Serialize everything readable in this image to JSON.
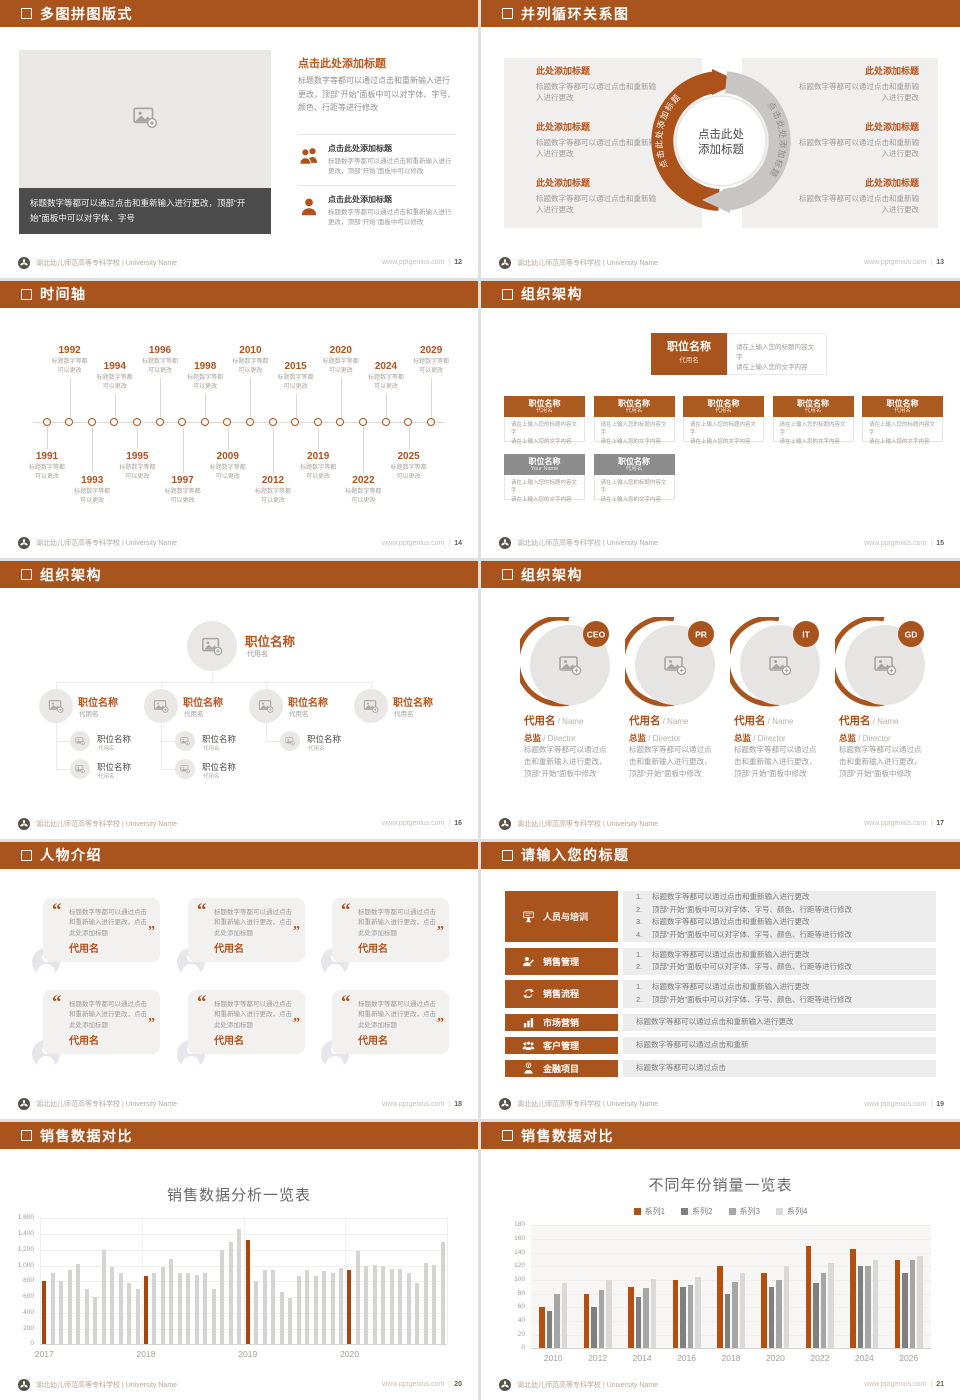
{
  "footer": {
    "school": "湖北幼儿师范高等专科学校 | University Name",
    "site": "www.pptgenius.com"
  },
  "colors": {
    "accent": "#a9531d",
    "accent_text": "#b4511a",
    "chart_orange": "#a8440c",
    "dark_caption": "#4c4c4c",
    "panel_gray": "#f0efee"
  },
  "slides": {
    "s12": {
      "title": "多图拼图版式",
      "page": "12",
      "caption": "标题数字等都可以通过点击和重新输入进行更改，顶部“开始”面板中可以对字体、字号",
      "heading": "点击此处添加标题",
      "paragraph": "标题数字等都可以通过点击和重新输入进行更改，顶部“开始”面板中可以对字体、字号、颜色、行距等进行修改",
      "items": [
        {
          "icon": "people",
          "title": "点击此处添加标题",
          "text": "标题数字等都可以通过点击和重新输入进行更改，顶部“开始”面板中可以修改"
        },
        {
          "icon": "person",
          "title": "点击此处添加标题",
          "text": "标题数字等都可以通过点击和重新输入进行更改，顶部“开始”面板中可以修改"
        }
      ]
    },
    "s13": {
      "title": "并列循环关系图",
      "page": "13",
      "center_line1": "点击此处",
      "center_line2": "添加标题",
      "arc_label": "点击此处添加标题",
      "left_items": [
        {
          "title": "此处添加标题",
          "text": "标题数字等都可以通过点击和重新输入进行更改"
        },
        {
          "title": "此处添加标题",
          "text": "标题数字等都可以通过点击和重新输入进行更改"
        },
        {
          "title": "此处添加标题",
          "text": "标题数字等都可以通过点击和重新输入进行更改"
        }
      ],
      "right_items": [
        {
          "title": "此处添加标题",
          "text": "标题数字等都可以通过点击和重新输入进行更改"
        },
        {
          "title": "此处添加标题",
          "text": "标题数字等都可以通过点击和重新输入进行更改"
        },
        {
          "title": "此处添加标题",
          "text": "标题数字等都可以通过点击和重新输入进行更改"
        }
      ]
    },
    "s14": {
      "title": "时间轴",
      "page": "14",
      "years": [
        "1991",
        "1992",
        "1993",
        "1994",
        "1995",
        "1996",
        "1997",
        "1998",
        "2009",
        "2010",
        "2012",
        "2015",
        "2019",
        "2020",
        "2022",
        "2024",
        "2025",
        "2029"
      ],
      "caption_line1": "标题数字等都",
      "caption_line2": "可以更改"
    },
    "s15": {
      "title": "组织架构",
      "page": "15",
      "root_title": "职位名称",
      "root_sub": "代用名",
      "note_line1": "请在上输入您的标题内容文字",
      "note_line2": "请在上输入您的文字内容",
      "card_body_line1": "请在上输入您的标题内容文字",
      "card_body_line2": "请在上输入您的文字内容",
      "cards_row1": [
        {
          "name": "职位名称",
          "sub": "代用名"
        },
        {
          "name": "职位名称",
          "sub": "代用名"
        },
        {
          "name": "职位名称",
          "sub": "代用名"
        },
        {
          "name": "职位名称",
          "sub": "代用名"
        },
        {
          "name": "职位名称",
          "sub": "代用名"
        }
      ],
      "cards_row2": [
        {
          "name": "职位名称",
          "sub": "Your Name"
        },
        {
          "name": "职位名称",
          "sub": "代用名"
        }
      ]
    },
    "s16": {
      "title": "组织架构",
      "page": "16",
      "root_title": "职位名称",
      "root_sub": "代用名",
      "branches": [
        {
          "name": "职位名称",
          "sub": "代用名",
          "children": [
            {
              "name": "职位名称",
              "sub": "代用名"
            },
            {
              "name": "职位名称",
              "sub": "代用名"
            }
          ]
        },
        {
          "name": "职位名称",
          "sub": "代用名",
          "children": [
            {
              "name": "职位名称",
              "sub": "代用名"
            },
            {
              "name": "职位名称",
              "sub": "代用名"
            }
          ]
        },
        {
          "name": "职位名称",
          "sub": "代用名",
          "children": [
            {
              "name": "职位名称",
              "sub": "代用名"
            }
          ]
        },
        {
          "name": "职位名称",
          "sub": "代用名",
          "children": []
        }
      ]
    },
    "s17": {
      "title": "组织架构",
      "page": "17",
      "members": [
        {
          "badge": "CEO",
          "name": "代用名",
          "name_en": "/ Name",
          "role": "总监",
          "role_en": "/ Director",
          "text": "标题数字等都可以通过点击和重新输入进行更改，顶部“开始”面板中修改"
        },
        {
          "badge": "PR",
          "name": "代用名",
          "name_en": "/ Name",
          "role": "总监",
          "role_en": "/ Director",
          "text": "标题数字等都可以通过点击和重新输入进行更改，顶部“开始”面板中修改"
        },
        {
          "badge": "IT",
          "name": "代用名",
          "name_en": "/ Name",
          "role": "总监",
          "role_en": "/ Director",
          "text": "标题数字等都可以通过点击和重新输入进行更改，顶部“开始”面板中修改"
        },
        {
          "badge": "GD",
          "name": "代用名",
          "name_en": "/ Name",
          "role": "总监",
          "role_en": "/ Director",
          "text": "标题数字等都可以通过点击和重新输入进行更改，顶部“开始”面板中修改"
        }
      ]
    },
    "s18": {
      "title": "人物介绍",
      "page": "18",
      "cards": [
        {
          "quote": "标题数字等都可以通过点击和重新输入进行更改，点击此处添加标题",
          "name": "代用名"
        },
        {
          "quote": "标题数字等都可以通过点击和重新输入进行更改，点击此处添加标题",
          "name": "代用名"
        },
        {
          "quote": "标题数字等都可以通过点击和重新输入进行更改，点击此处添加标题",
          "name": "代用名"
        },
        {
          "quote": "标题数字等都可以通过点击和重新输入进行更改，点击此处添加标题",
          "name": "代用名"
        },
        {
          "quote": "标题数字等都可以通过点击和重新输入进行更改，点击此处添加标题",
          "name": "代用名"
        },
        {
          "quote": "标题数字等都可以通过点击和重新输入进行更改，点击此处添加标题",
          "name": "代用名"
        }
      ]
    },
    "s19": {
      "title": "请输入您的标题",
      "page": "19",
      "rows": [
        {
          "icon": "training",
          "label": "人员与培训",
          "numbered": true,
          "items": [
            "标题数字等都可以通过点击和重新输入进行更改",
            "顶部“开始”面板中可以对字体、字号、颜色、行距等进行修改",
            "标题数字等都可以通过点击和重新输入进行更改",
            "顶部“开始”面板中可以对字体、字号、颜色、行距等进行修改"
          ]
        },
        {
          "icon": "sales",
          "label": "销售管理",
          "numbered": true,
          "items": [
            "标题数字等都可以通过点击和重新输入进行更改",
            "顶部“开始”面板中可以对字体、字号、颜色、行距等进行修改"
          ]
        },
        {
          "icon": "process",
          "label": "销售流程",
          "numbered": true,
          "items": [
            "标题数字等都可以通过点击和重新输入进行更改",
            "顶部“开始”面板中可以对字体、字号、颜色、行距等进行修改"
          ]
        },
        {
          "icon": "market",
          "label": "市场营销",
          "numbered": false,
          "items": [
            "标题数字等都可以通过点击和重新输入进行更改"
          ]
        },
        {
          "icon": "customer",
          "label": "客户管理",
          "numbered": false,
          "items": [
            "标题数字等都可以通过点击和重新"
          ]
        },
        {
          "icon": "finance",
          "label": "金融项目",
          "numbered": false,
          "items": [
            "标题数字等都可以通过点击"
          ]
        }
      ]
    },
    "s20": {
      "title": "销售数据对比",
      "page": "20"
    },
    "s21": {
      "title": "销售数据对比",
      "page": "21"
    }
  },
  "chart_data": [
    {
      "slide": "s20",
      "type": "bar",
      "title": "销售数据分析一览表",
      "xlabel": "",
      "ylabel": "",
      "ylim": [
        0,
        1600
      ],
      "ytick_step": 200,
      "ytick_labels": [
        "0",
        "200",
        "400",
        "600",
        "800",
        "1,000",
        "1,200",
        "1,400",
        "1,600"
      ],
      "grid": true,
      "legend_position": "none",
      "groups": [
        "2017",
        "2018",
        "2019",
        "2020"
      ],
      "bar_color": "#d6d4d2",
      "accent_color": "#a8440c",
      "accent_first_bar_of_group": true,
      "values_by_group": [
        [
          800,
          900,
          800,
          950,
          1020,
          700,
          600,
          1200,
          980,
          900,
          780,
          700
        ],
        [
          870,
          900,
          980,
          1090,
          900,
          900,
          875,
          905,
          705,
          1195,
          1300,
          1460
        ],
        [
          1320,
          810,
          950,
          950,
          660,
          590,
          870,
          950,
          870,
          930,
          900,
          970
        ],
        [
          950,
          1190,
          1000,
          1010,
          1000,
          960,
          955,
          900,
          780,
          1030,
          1010,
          1300
        ]
      ]
    },
    {
      "slide": "s21",
      "type": "bar",
      "title": "不同年份销量一览表",
      "xlabel": "",
      "ylabel": "",
      "ylim": [
        0,
        180
      ],
      "ytick_step": 20,
      "ytick_labels": [
        "0",
        "20",
        "40",
        "60",
        "80",
        "100",
        "120",
        "140",
        "160",
        "180"
      ],
      "grid": true,
      "legend_position": "top",
      "plot_bg": "#f7f6f4",
      "categories": [
        "2010",
        "2012",
        "2014",
        "2016",
        "2018",
        "2020",
        "2022",
        "2024",
        "2026"
      ],
      "series": [
        {
          "name": "系列1",
          "color": "#b4500f",
          "values": [
            60,
            80,
            90,
            100,
            120,
            110,
            150,
            145,
            130
          ]
        },
        {
          "name": "系列2",
          "color": "#7f7f7f",
          "values": [
            55,
            60,
            75,
            90,
            80,
            90,
            95,
            120,
            110
          ]
        },
        {
          "name": "系列3",
          "color": "#a6a6a6",
          "values": [
            80,
            85,
            88,
            92,
            97,
            100,
            110,
            120,
            130
          ]
        },
        {
          "name": "系列4",
          "color": "#d9d9d9",
          "values": [
            95,
            100,
            102,
            105,
            110,
            120,
            125,
            130,
            135
          ]
        }
      ]
    }
  ]
}
